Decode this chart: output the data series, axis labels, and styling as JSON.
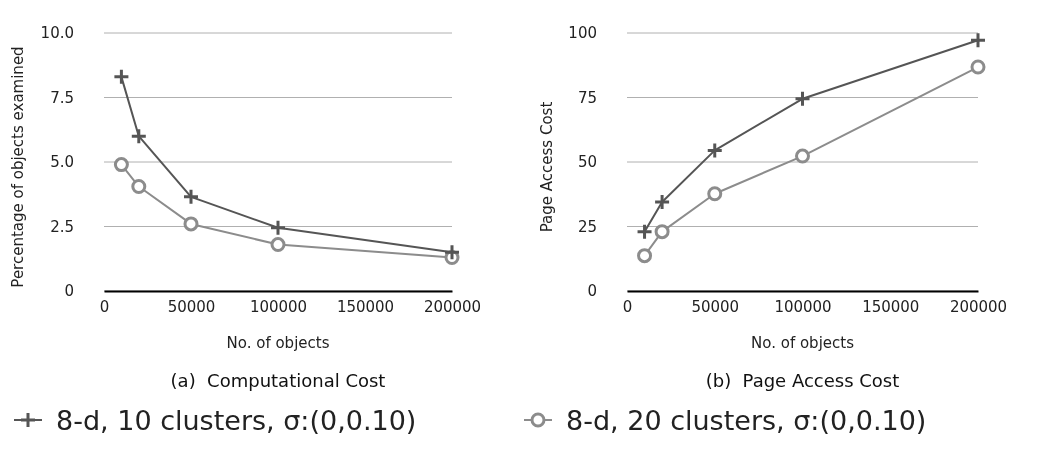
{
  "chart_data": [
    {
      "type": "line",
      "title": "(a)  Computational Cost",
      "xlabel": "No. of objects",
      "ylabel": "Percentage of objects examined",
      "x": [
        10000,
        20000,
        50000,
        100000,
        200000
      ],
      "xlim": [
        0,
        200000
      ],
      "xticks": [
        0,
        50000,
        100000,
        150000,
        200000
      ],
      "ylim": [
        0,
        10
      ],
      "yticks": [
        0,
        {
          "value": 2.5,
          "label": "2.5"
        },
        {
          "value": 5,
          "label": "5.0"
        },
        {
          "value": 7.5,
          "label": "7.5"
        },
        {
          "value": 10,
          "label": "10.0"
        }
      ],
      "grid": "y",
      "legend": "bottom",
      "series": [
        {
          "name": "8-d, 10 clusters, σ:(0,0.10)",
          "color": "#555555",
          "marker": "cross",
          "values": [
            8.3,
            6.0,
            3.65,
            2.45,
            1.5
          ]
        },
        {
          "name": "8-d, 20 clusters, σ:(0,0.10)",
          "color": "#8c8c8c",
          "marker": "circle",
          "values": [
            4.9,
            4.05,
            2.6,
            1.8,
            1.3
          ]
        }
      ]
    },
    {
      "type": "line",
      "title": "(b)  Page Access Cost",
      "xlabel": "No. of objects",
      "ylabel": "Page Access Cost",
      "x": [
        10000,
        20000,
        50000,
        100000,
        200000
      ],
      "xlim": [
        0,
        200000
      ],
      "xticks": [
        0,
        50000,
        100000,
        150000,
        200000
      ],
      "ylim": [
        0,
        100
      ],
      "yticks": [
        0,
        25,
        50,
        75,
        100
      ],
      "grid": "y",
      "series": [
        {
          "color": "#555555",
          "marker": "cross",
          "values": [
            23,
            34.5,
            54.5,
            74.5,
            97.2
          ]
        },
        {
          "color": "#8c8c8c",
          "marker": "circle",
          "values": [
            13.7,
            23,
            37.7,
            52.3,
            86.8
          ]
        }
      ]
    }
  ]
}
